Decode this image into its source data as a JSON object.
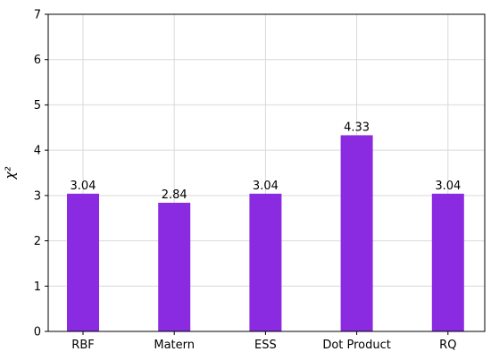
{
  "chart_data": {
    "type": "bar",
    "categories": [
      "RBF",
      "Matern",
      "ESS",
      "Dot Product",
      "RQ"
    ],
    "values": [
      3.04,
      2.84,
      3.04,
      4.33,
      3.04
    ],
    "data_labels": [
      "3.04",
      "2.84",
      "3.04",
      "4.33",
      "3.04"
    ],
    "title": "",
    "xlabel": "",
    "ylabel": "χ²",
    "ylim": [
      0,
      7
    ],
    "yticks": [
      0,
      1,
      2,
      3,
      4,
      5,
      6,
      7
    ],
    "grid": true,
    "bar_color": "#8a2be2",
    "grid_color": "#d9d9d9"
  }
}
